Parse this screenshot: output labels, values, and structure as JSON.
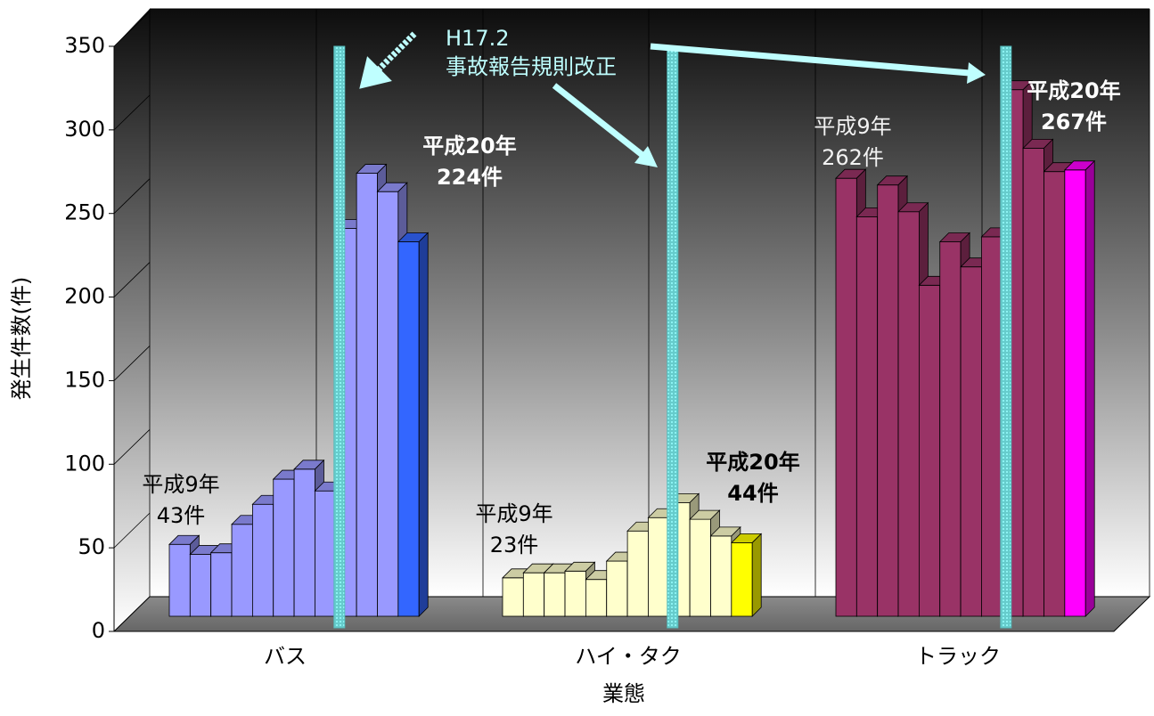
{
  "chart_data": {
    "type": "bar",
    "y_label": "発生件数(件)",
    "x_label": "業態",
    "ylim": [
      0,
      350
    ],
    "yticks": [
      0,
      50,
      100,
      150,
      200,
      250,
      300,
      350
    ],
    "categories": [
      "バス",
      "ハイ・タク",
      "トラック"
    ],
    "groups": [
      {
        "color": "#9999ff",
        "highlight_color": "#3366ff",
        "values": [
          43,
          37,
          38,
          55,
          67,
          82,
          88,
          75,
          232,
          265,
          254,
          224
        ]
      },
      {
        "color": "#ffffcc",
        "highlight_color": "#ffff00",
        "values": [
          23,
          26,
          26,
          27,
          22,
          33,
          51,
          59,
          68,
          58,
          48,
          44
        ]
      },
      {
        "color": "#993366",
        "highlight_color": "#ff00ff",
        "values": [
          262,
          239,
          258,
          242,
          198,
          224,
          209,
          227,
          315,
          280,
          266,
          267
        ]
      }
    ],
    "annotations": [
      [
        "H17.2",
        "事故報告規則改正"
      ],
      [
        "平成9年",
        "43件"
      ],
      [
        "平成20年",
        "224件"
      ],
      [
        "平成9年",
        "23件"
      ],
      [
        "平成20年",
        "44件"
      ],
      [
        "平成9年",
        "262件"
      ],
      [
        "平成20年",
        "267件"
      ]
    ]
  }
}
